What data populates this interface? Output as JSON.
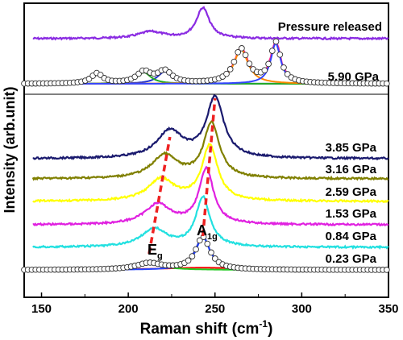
{
  "chart_data": {
    "type": "line",
    "xlabel": "Raman shift (cm",
    "xlabel_sup": "-1",
    "xlabel_end": ")",
    "ylabel": "Intensity (arb.unit)",
    "xlim": [
      140,
      350
    ],
    "x_ticks": [
      150,
      200,
      250,
      300,
      350
    ],
    "grid": false,
    "legend": "none",
    "series": [
      {
        "name": "Pressure released",
        "color": "#8a2be2",
        "x_start": 145,
        "x_end": 350,
        "peaks": [
          {
            "center": 243,
            "height": 1.0,
            "width": 4.5
          },
          {
            "center": 213,
            "height": 0.22,
            "width": 9
          }
        ]
      },
      {
        "name": "5.90 GPa",
        "color": "#ff2a8a",
        "x_start": 160,
        "x_end": 350,
        "peaks": [
          {
            "center": 182,
            "height": 0.25,
            "width": 4
          },
          {
            "center": 209,
            "height": 0.28,
            "width": 5
          },
          {
            "center": 221,
            "height": 0.3,
            "width": 5
          },
          {
            "center": 265,
            "height": 0.85,
            "width": 5
          },
          {
            "center": 285,
            "height": 1.0,
            "width": 3.5
          }
        ]
      },
      {
        "name": "3.85 GPa",
        "color": "#1a1a6e",
        "x_start": 145,
        "x_end": 350,
        "peaks": [
          {
            "center": 224,
            "height": 0.45,
            "width": 9
          },
          {
            "center": 250,
            "height": 1.0,
            "width": 6
          }
        ]
      },
      {
        "name": "3.16 GPa",
        "color": "#808000",
        "x_start": 145,
        "x_end": 350,
        "peaks": [
          {
            "center": 221,
            "height": 0.4,
            "width": 9
          },
          {
            "center": 248,
            "height": 0.95,
            "width": 5.5
          }
        ]
      },
      {
        "name": "2.59 GPa",
        "color": "#ffff00",
        "x_start": 145,
        "x_end": 350,
        "peaks": [
          {
            "center": 219,
            "height": 0.38,
            "width": 9
          },
          {
            "center": 247,
            "height": 0.95,
            "width": 5.5
          }
        ]
      },
      {
        "name": "1.53 GPa",
        "color": "#e020e0",
        "x_start": 145,
        "x_end": 350,
        "peaks": [
          {
            "center": 217,
            "height": 0.35,
            "width": 9
          },
          {
            "center": 245,
            "height": 0.95,
            "width": 5
          }
        ]
      },
      {
        "name": "0.84 GPa",
        "color": "#22e0e0",
        "x_start": 145,
        "x_end": 350,
        "peaks": [
          {
            "center": 215,
            "height": 0.33,
            "width": 9
          },
          {
            "center": 243,
            "height": 0.9,
            "width": 5
          }
        ]
      },
      {
        "name": "0.23 GPa",
        "color": "#1a1a8a",
        "x_start": 145,
        "x_end": 350,
        "peaks": [
          {
            "center": 212,
            "height": 0.18,
            "width": 9
          },
          {
            "center": 243,
            "height": 0.9,
            "width": 5
          }
        ]
      }
    ],
    "fit_components_5_90": [
      {
        "color": "#2233cc",
        "peaks": [
          {
            "center": 221,
            "height": 0.3,
            "width": 5
          }
        ]
      },
      {
        "color": "#22aa22",
        "peaks": [
          {
            "center": 209,
            "height": 0.28,
            "width": 5
          }
        ]
      },
      {
        "color": "#ff8800",
        "peaks": [
          {
            "center": 265,
            "height": 0.85,
            "width": 5
          }
        ]
      },
      {
        "color": "#3344ff",
        "peaks": [
          {
            "center": 285,
            "height": 1.0,
            "width": 3.5
          }
        ]
      }
    ],
    "fit_components_0_23": [
      {
        "color": "#ff0000",
        "peaks": [
          {
            "center": 243,
            "height": 0.06,
            "width": 30
          }
        ]
      },
      {
        "color": "#22cc22",
        "peaks": [
          {
            "center": 212,
            "height": 0.18,
            "width": 9
          }
        ]
      },
      {
        "color": "#2244ff",
        "peaks": [
          {
            "center": 243,
            "height": 0.9,
            "width": 5
          }
        ]
      }
    ],
    "trend_lines": {
      "Eg": {
        "color": "#ee2222",
        "x": [
          212,
          224
        ]
      },
      "A1g": {
        "color": "#ee2222",
        "x": [
          243,
          250
        ]
      }
    },
    "mode_labels": [
      {
        "base": "E",
        "sub": "g"
      },
      {
        "base": "A",
        "sub": "1g"
      }
    ]
  }
}
